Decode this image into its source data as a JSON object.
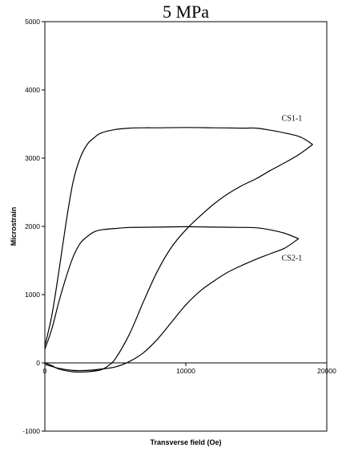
{
  "chart_data": {
    "type": "line",
    "title": "5 MPa",
    "xlabel": "Transverse field (Oe)",
    "ylabel": "Microstrain",
    "xlim": [
      0,
      20000
    ],
    "ylim": [
      -1000,
      5000
    ],
    "xticks": [
      0,
      10000,
      20000
    ],
    "yticks": [
      -1000,
      0,
      1000,
      2000,
      3000,
      4000,
      5000
    ],
    "x_tick_labels": [
      "0",
      "10000",
      "20000"
    ],
    "y_tick_labels": [
      "-1000",
      "0",
      "1000",
      "2000",
      "3000",
      "4000",
      "5000"
    ],
    "grid": false,
    "legend": "none",
    "annotations": [
      {
        "text": "CS1-1",
        "x": 16800,
        "y": 3550
      },
      {
        "text": "CS2-1",
        "x": 16800,
        "y": 1500
      }
    ],
    "series": [
      {
        "label_ref": "CS1-1",
        "branch": "upper",
        "x": [
          0,
          500,
          1000,
          1500,
          2000,
          2500,
          3000,
          3500,
          4000,
          5000,
          6000,
          7000,
          8000,
          10000,
          12000,
          14000,
          15000,
          16000,
          17000,
          18000,
          18500,
          19000
        ],
        "y": [
          250,
          700,
          1350,
          2050,
          2650,
          3000,
          3200,
          3300,
          3370,
          3420,
          3440,
          3445,
          3445,
          3450,
          3445,
          3440,
          3440,
          3410,
          3370,
          3320,
          3270,
          3200
        ]
      },
      {
        "label_ref": "CS1-1",
        "branch": "lower",
        "x": [
          19000,
          18000,
          17000,
          16000,
          15000,
          14000,
          13000,
          12000,
          11000,
          10000,
          9000,
          8000,
          7000,
          6000,
          5000,
          4500,
          4000,
          3000,
          2000,
          1000,
          500,
          0
        ],
        "y": [
          3200,
          3050,
          2930,
          2820,
          2700,
          2600,
          2480,
          2330,
          2150,
          1950,
          1700,
          1350,
          900,
          420,
          60,
          -40,
          -100,
          -130,
          -130,
          -90,
          -40,
          0
        ]
      },
      {
        "label_ref": "CS2-1",
        "branch": "upper",
        "x": [
          0,
          500,
          1000,
          1500,
          2000,
          2500,
          3000,
          3500,
          4000,
          5000,
          6000,
          8000,
          10000,
          12000,
          14000,
          15000,
          16000,
          17000,
          18000
        ],
        "y": [
          200,
          500,
          900,
          1250,
          1550,
          1750,
          1850,
          1920,
          1950,
          1970,
          1985,
          1990,
          1995,
          1990,
          1985,
          1980,
          1950,
          1900,
          1820
        ]
      },
      {
        "label_ref": "CS2-1",
        "branch": "lower",
        "x": [
          18000,
          17000,
          16000,
          15000,
          14000,
          13000,
          12000,
          11000,
          10000,
          9000,
          8000,
          7000,
          6000,
          5000,
          4000,
          3000,
          2000,
          1000,
          0
        ],
        "y": [
          1820,
          1680,
          1600,
          1520,
          1430,
          1330,
          1200,
          1050,
          850,
          600,
          350,
          150,
          20,
          -60,
          -90,
          -110,
          -110,
          -80,
          -20
        ]
      }
    ]
  }
}
